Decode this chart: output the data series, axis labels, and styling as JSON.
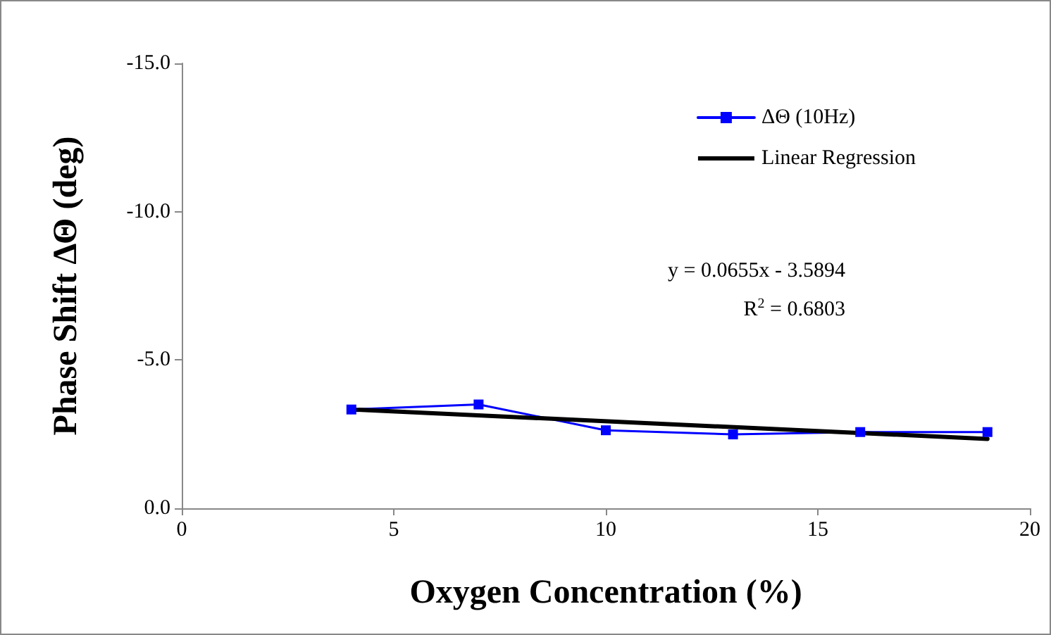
{
  "chart_data": {
    "type": "line",
    "xlabel": "Oxygen Concentration (%)",
    "ylabel": "Phase Shift ΔΘ (deg)",
    "x": [
      4,
      7,
      10,
      13,
      16,
      19
    ],
    "series": [
      {
        "name": "ΔΘ (10Hz)",
        "color": "#0000ff",
        "marker": "square",
        "values": [
          -3.33,
          -3.5,
          -2.63,
          -2.49,
          -2.57,
          -2.57
        ]
      },
      {
        "name": "Linear Regression",
        "color": "#000000",
        "marker": "none",
        "x": [
          4,
          19
        ],
        "values": [
          -3.33,
          -2.34
        ]
      }
    ],
    "xlim": [
      0,
      20
    ],
    "xticks": [
      0,
      5,
      10,
      15,
      20
    ],
    "ylim": [
      0,
      -15
    ],
    "yticks": [
      {
        "value": 0,
        "label": "0.0"
      },
      {
        "value": -5,
        "label": "-5.0"
      },
      {
        "value": -10,
        "label": "-10.0"
      },
      {
        "value": -15,
        "label": "-15.0"
      }
    ],
    "grid": false,
    "legend": "top right",
    "annotations": [
      "y = 0.0655x - 3.5894",
      "R$^{2}$ = 0.6803"
    ]
  }
}
